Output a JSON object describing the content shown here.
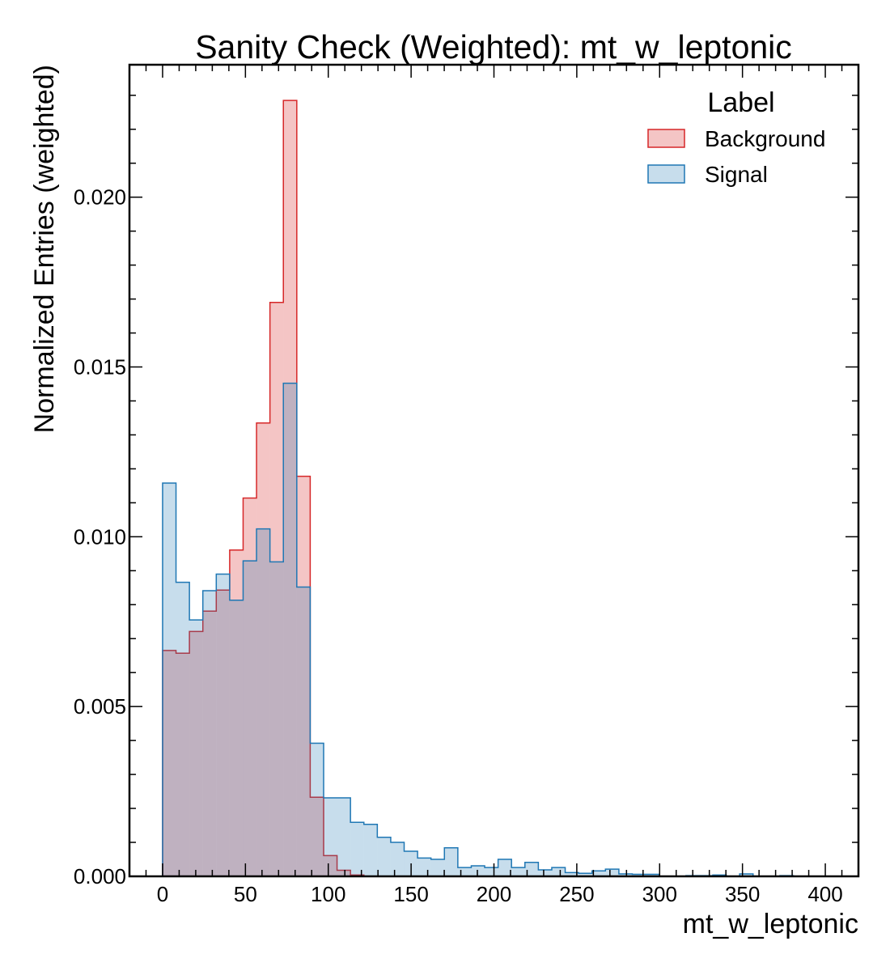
{
  "chart_data": {
    "type": "histogram",
    "title": "Sanity Check (Weighted): mt_w_leptonic",
    "xlabel": "mt_w_leptonic",
    "ylabel": "Normalized Entries (weighted)",
    "xlim": [
      -20,
      420
    ],
    "ylim": [
      0,
      0.0239
    ],
    "x_ticks": [
      0,
      50,
      100,
      150,
      200,
      250,
      300,
      350,
      400
    ],
    "x_tick_labels": [
      "0",
      "50",
      "100",
      "150",
      "200",
      "250",
      "300",
      "350",
      "400"
    ],
    "y_ticks": [
      0,
      0.005,
      0.01,
      0.015,
      0.02
    ],
    "y_tick_labels": [
      "0.000",
      "0.005",
      "0.010",
      "0.015",
      "0.020"
    ],
    "grid": false,
    "legend": {
      "title": "Label",
      "placement": "top-right"
    },
    "bin_edges": [
      0,
      8.1,
      16.2,
      24.3,
      32.4,
      40.5,
      48.6,
      56.7,
      64.8,
      72.9,
      81,
      89.1,
      97.2,
      105.3,
      113.4,
      121.5,
      129.6,
      137.7,
      145.8,
      153.9,
      162,
      170.1,
      178.2,
      186.3,
      194.4,
      202.5,
      210.6,
      218.7,
      226.8,
      234.9,
      243,
      251.1,
      259.2,
      267.3,
      275.4,
      283.5,
      291.6,
      299.7,
      307.8,
      315.9,
      324,
      332.1,
      340.2,
      348.3,
      356.4,
      364.5,
      372.6,
      380.7,
      388.8,
      396.9,
      405
    ],
    "series": [
      {
        "name": "Background",
        "color": "#d62728",
        "fill": "rgba(214,39,40,0.27)",
        "values": [
          0.00665,
          0.00657,
          0.00721,
          0.00781,
          0.00843,
          0.00961,
          0.01114,
          0.01335,
          0.0169,
          0.02285,
          0.01178,
          0.00233,
          0.00061,
          0.00018,
          4e-05,
          0,
          0,
          0,
          0,
          0,
          0,
          0,
          0,
          0,
          0,
          0,
          0,
          0,
          0,
          0,
          0,
          0,
          0,
          0,
          0,
          0,
          0,
          0,
          0,
          0,
          0,
          0,
          0,
          0,
          0,
          0,
          0,
          0,
          0,
          0
        ]
      },
      {
        "name": "Signal",
        "color": "#1f77b4",
        "fill": "rgba(31,119,180,0.25)",
        "values": [
          0.01158,
          0.00866,
          0.00755,
          0.00841,
          0.0089,
          0.00813,
          0.00929,
          0.01023,
          0.00926,
          0.01452,
          0.00852,
          0.00392,
          0.00231,
          0.00231,
          0.00159,
          0.00153,
          0.00115,
          0.001,
          0.00074,
          0.00054,
          0.0005,
          0.00084,
          0.00026,
          0.00031,
          0.00026,
          0.0005,
          0.00026,
          0.00041,
          0.00019,
          0.00026,
          0.00011,
          9e-05,
          0.00016,
          0.00021,
          7e-05,
          6e-05,
          6e-05,
          0,
          0,
          2e-05,
          2e-05,
          4e-05,
          0,
          7e-05,
          0,
          0,
          2e-05,
          0,
          0,
          0
        ]
      }
    ]
  }
}
